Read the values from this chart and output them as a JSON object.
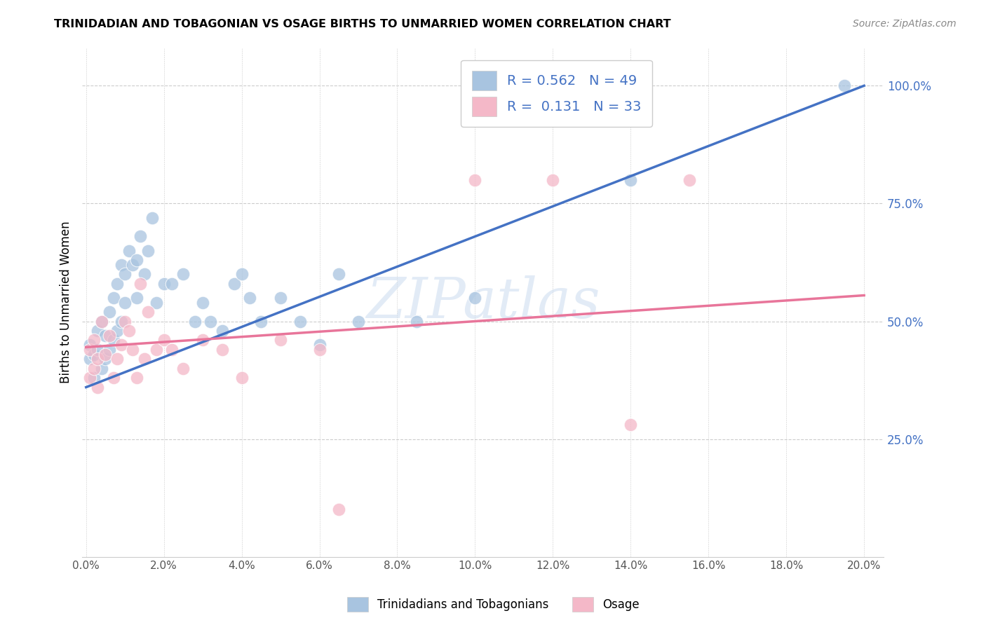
{
  "title": "TRINIDADIAN AND TOBAGONIAN VS OSAGE BIRTHS TO UNMARRIED WOMEN CORRELATION CHART",
  "source": "Source: ZipAtlas.com",
  "ylabel": "Births to Unmarried Women",
  "xlabel_ticks": [
    "0.0%",
    "2.0%",
    "4.0%",
    "6.0%",
    "8.0%",
    "10.0%",
    "12.0%",
    "14.0%",
    "16.0%",
    "18.0%",
    "20.0%"
  ],
  "xlabel_vals": [
    0.0,
    0.02,
    0.04,
    0.06,
    0.08,
    0.1,
    0.12,
    0.14,
    0.16,
    0.18,
    0.2
  ],
  "ylabel_ticks": [
    "25.0%",
    "50.0%",
    "75.0%",
    "100.0%"
  ],
  "ylabel_vals": [
    0.25,
    0.5,
    0.75,
    1.0
  ],
  "xlim": [
    -0.001,
    0.205
  ],
  "ylim": [
    0.0,
    1.08
  ],
  "blue_color": "#A8C4E0",
  "pink_color": "#F4B8C8",
  "blue_line_color": "#4472C4",
  "pink_line_color": "#E8759A",
  "legend_r_blue": "0.562",
  "legend_n_blue": "49",
  "legend_r_pink": "0.131",
  "legend_n_pink": "33",
  "watermark": "ZIPatlas",
  "blue_label": "Trinidadians and Tobagonians",
  "pink_label": "Osage",
  "blue_line_x0": 0.0,
  "blue_line_y0": 0.36,
  "blue_line_x1": 0.2,
  "blue_line_y1": 1.0,
  "pink_line_x0": 0.0,
  "pink_line_y0": 0.445,
  "pink_line_x1": 0.2,
  "pink_line_y1": 0.555,
  "blue_scatter_x": [
    0.001,
    0.001,
    0.002,
    0.002,
    0.003,
    0.003,
    0.004,
    0.004,
    0.005,
    0.005,
    0.006,
    0.006,
    0.007,
    0.007,
    0.008,
    0.008,
    0.009,
    0.009,
    0.01,
    0.01,
    0.011,
    0.012,
    0.013,
    0.013,
    0.014,
    0.015,
    0.016,
    0.017,
    0.018,
    0.02,
    0.022,
    0.025,
    0.028,
    0.03,
    0.032,
    0.035,
    0.038,
    0.04,
    0.042,
    0.045,
    0.05,
    0.055,
    0.06,
    0.065,
    0.07,
    0.085,
    0.1,
    0.14,
    0.195
  ],
  "blue_scatter_y": [
    0.42,
    0.45,
    0.43,
    0.38,
    0.44,
    0.48,
    0.4,
    0.5,
    0.42,
    0.47,
    0.44,
    0.52,
    0.46,
    0.55,
    0.48,
    0.58,
    0.5,
    0.62,
    0.54,
    0.6,
    0.65,
    0.62,
    0.55,
    0.63,
    0.68,
    0.6,
    0.65,
    0.72,
    0.54,
    0.58,
    0.58,
    0.6,
    0.5,
    0.54,
    0.5,
    0.48,
    0.58,
    0.6,
    0.55,
    0.5,
    0.55,
    0.5,
    0.45,
    0.6,
    0.5,
    0.5,
    0.55,
    0.8,
    1.0
  ],
  "pink_scatter_x": [
    0.001,
    0.001,
    0.002,
    0.002,
    0.003,
    0.003,
    0.004,
    0.005,
    0.006,
    0.007,
    0.008,
    0.009,
    0.01,
    0.011,
    0.012,
    0.013,
    0.014,
    0.015,
    0.016,
    0.018,
    0.02,
    0.022,
    0.025,
    0.03,
    0.035,
    0.04,
    0.05,
    0.06,
    0.065,
    0.1,
    0.12,
    0.14,
    0.155
  ],
  "pink_scatter_y": [
    0.38,
    0.44,
    0.4,
    0.46,
    0.42,
    0.36,
    0.5,
    0.43,
    0.47,
    0.38,
    0.42,
    0.45,
    0.5,
    0.48,
    0.44,
    0.38,
    0.58,
    0.42,
    0.52,
    0.44,
    0.46,
    0.44,
    0.4,
    0.46,
    0.44,
    0.38,
    0.46,
    0.44,
    0.1,
    0.8,
    0.8,
    0.28,
    0.8
  ]
}
